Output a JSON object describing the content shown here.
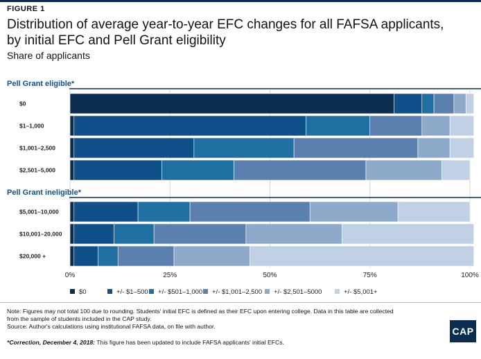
{
  "figure_label": "FIGURE 1",
  "title_line1": "Distribution of average year-to-year EFC changes for all FAFSA applicants,",
  "title_line2": "by initial EFC and Pell Grant eligibility",
  "subtitle": "Share of applicants",
  "notes": {
    "line1": "Note: Figures may not total 100 due to rounding. Students' initial EFC is defined as their EFC upon entering college. Data in this table are collected",
    "line2": "from the sample of students included in the CAP study.",
    "line3": "Source: Author's calculations using institutional FAFSA data, on file with author.",
    "correction_label": "*Correction, December 4, 2018:",
    "correction_text": " This figure has been updated to include FAFSA applicants' initial EFCs."
  },
  "logo_text": "CAP",
  "chart_data": {
    "type": "bar",
    "orientation": "horizontal",
    "stacked": true,
    "xlim": [
      0,
      100
    ],
    "xticks": [
      "0%",
      "25%",
      "50%",
      "75%",
      "100%"
    ],
    "groups": [
      {
        "label": "Pell Grant eligible*",
        "categories": [
          "$0",
          "$1–1,000",
          "$1,001–2,500",
          "$2,501–5,000"
        ]
      },
      {
        "label": "Pell Grant ineligible*",
        "categories": [
          "$5,001–10,000",
          "$10,001–20,000",
          "$20,000 +"
        ]
      }
    ],
    "categories": [
      "$0",
      "$1–1,000",
      "$1,001–2,500",
      "$2,501–5,000",
      "$5,001–10,000",
      "$10,001–20,000",
      "$20,000 +"
    ],
    "series": [
      {
        "name": "$0",
        "color": "#0b2d4f",
        "values": [
          81,
          1,
          1,
          1,
          1,
          1,
          1
        ]
      },
      {
        "name": "+/- $1–500",
        "color": "#0f4f8a",
        "values": [
          7,
          58,
          30,
          22,
          16,
          10,
          6
        ]
      },
      {
        "name": "+/- $501–1,000",
        "color": "#1f6fa3",
        "values": [
          3,
          16,
          25,
          18,
          13,
          10,
          5
        ]
      },
      {
        "name": "+/- $1,001–2,500",
        "color": "#5b7fae",
        "values": [
          5,
          13,
          31,
          33,
          30,
          23,
          14
        ]
      },
      {
        "name": "+/- $2,501–5000",
        "color": "#8eaacb",
        "values": [
          3,
          7,
          8,
          19,
          22,
          24,
          19
        ]
      },
      {
        "name": "+/- $5,001+",
        "color": "#c0d0e5",
        "values": [
          2,
          6,
          6,
          7,
          18,
          33,
          56
        ]
      }
    ],
    "legend_position": "bottom"
  }
}
